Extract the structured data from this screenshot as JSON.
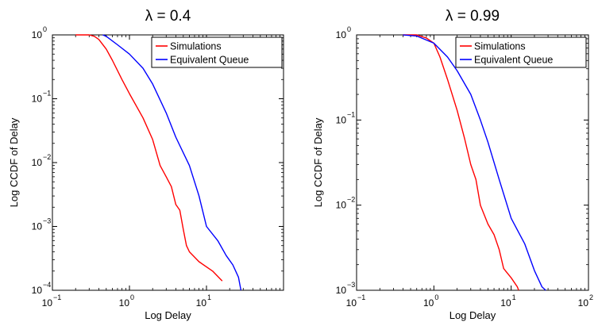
{
  "chart_data": [
    {
      "type": "line",
      "title": "λ = 0.4",
      "xlabel": "Log Delay",
      "ylabel": "Log CCDF of Delay",
      "xscale": "log",
      "yscale": "log",
      "xlim": [
        0.1,
        100
      ],
      "ylim": [
        0.0001,
        1
      ],
      "xticks": [
        {
          "value": 0.1,
          "base": "10",
          "exp": "−1"
        },
        {
          "value": 1,
          "base": "10",
          "exp": "0"
        },
        {
          "value": 10,
          "base": "10",
          "exp": "1"
        }
      ],
      "yticks": [
        {
          "value": 0.0001,
          "base": "10",
          "exp": "−4"
        },
        {
          "value": 0.001,
          "base": "10",
          "exp": "−3"
        },
        {
          "value": 0.01,
          "base": "10",
          "exp": "−2"
        },
        {
          "value": 0.1,
          "base": "10",
          "exp": "−1"
        },
        {
          "value": 1,
          "base": "10",
          "exp": "0"
        }
      ],
      "legend_position": "top-right",
      "grid": false,
      "series": [
        {
          "name": "Simulations",
          "color": "#ff0000",
          "points": [
            [
              0.2,
              1
            ],
            [
              0.3,
              1
            ],
            [
              0.35,
              0.95
            ],
            [
              0.4,
              0.85
            ],
            [
              0.5,
              0.6
            ],
            [
              0.6,
              0.4
            ],
            [
              0.8,
              0.2
            ],
            [
              1.0,
              0.12
            ],
            [
              1.5,
              0.05
            ],
            [
              2.0,
              0.023
            ],
            [
              2.5,
              0.009
            ],
            [
              3.0,
              0.006
            ],
            [
              3.5,
              0.0042
            ],
            [
              4.0,
              0.0022
            ],
            [
              4.5,
              0.0018
            ],
            [
              5.0,
              0.0009
            ],
            [
              5.5,
              0.0005
            ],
            [
              6.0,
              0.0004
            ],
            [
              8.0,
              0.00028
            ],
            [
              12.0,
              0.0002
            ],
            [
              16.0,
              0.00014
            ]
          ]
        },
        {
          "name": "Equivalent Queue",
          "color": "#0000ff",
          "points": [
            [
              0.45,
              1
            ],
            [
              0.5,
              0.95
            ],
            [
              0.7,
              0.7
            ],
            [
              1.0,
              0.5
            ],
            [
              1.5,
              0.3
            ],
            [
              2.0,
              0.17
            ],
            [
              3.0,
              0.06
            ],
            [
              4.0,
              0.025
            ],
            [
              6.0,
              0.009
            ],
            [
              8.0,
              0.003
            ],
            [
              10.0,
              0.001
            ],
            [
              14.0,
              0.0006
            ],
            [
              18.0,
              0.00035
            ],
            [
              22.0,
              0.00025
            ],
            [
              26.0,
              0.00016
            ],
            [
              28.0,
              0.0001
            ]
          ]
        }
      ]
    },
    {
      "type": "line",
      "title": "λ = 0.99",
      "xlabel": "Log Delay",
      "ylabel": "Log CCDF of Delay",
      "xscale": "log",
      "yscale": "log",
      "xlim": [
        0.1,
        100
      ],
      "ylim": [
        0.001,
        1
      ],
      "xticks": [
        {
          "value": 0.1,
          "base": "10",
          "exp": "−1"
        },
        {
          "value": 1,
          "base": "10",
          "exp": "0"
        },
        {
          "value": 10,
          "base": "10",
          "exp": "1"
        },
        {
          "value": 100,
          "base": "10",
          "exp": "2"
        }
      ],
      "yticks": [
        {
          "value": 0.001,
          "base": "10",
          "exp": "−3"
        },
        {
          "value": 0.01,
          "base": "10",
          "exp": "−2"
        },
        {
          "value": 0.1,
          "base": "10",
          "exp": "−1"
        },
        {
          "value": 1,
          "base": "10",
          "exp": "0"
        }
      ],
      "legend_position": "top-right",
      "grid": false,
      "series": [
        {
          "name": "Simulations",
          "color": "#ff0000",
          "points": [
            [
              0.4,
              1
            ],
            [
              0.6,
              1
            ],
            [
              0.8,
              0.92
            ],
            [
              1.0,
              0.8
            ],
            [
              1.2,
              0.55
            ],
            [
              1.5,
              0.3
            ],
            [
              2.0,
              0.13
            ],
            [
              2.5,
              0.06
            ],
            [
              3.0,
              0.03
            ],
            [
              3.5,
              0.02
            ],
            [
              4.0,
              0.01
            ],
            [
              5.0,
              0.006
            ],
            [
              6.0,
              0.0045
            ],
            [
              7.0,
              0.003
            ],
            [
              8.0,
              0.0018
            ],
            [
              10.0,
              0.0014
            ],
            [
              12.0,
              0.0011
            ],
            [
              12.5,
              0.001
            ]
          ]
        },
        {
          "name": "Equivalent Queue",
          "color": "#0000ff",
          "points": [
            [
              0.4,
              1
            ],
            [
              0.6,
              0.97
            ],
            [
              1.0,
              0.8
            ],
            [
              1.5,
              0.55
            ],
            [
              2.0,
              0.38
            ],
            [
              3.0,
              0.2
            ],
            [
              4.0,
              0.1
            ],
            [
              5.0,
              0.055
            ],
            [
              7.0,
              0.02
            ],
            [
              10.0,
              0.007
            ],
            [
              15.0,
              0.0035
            ],
            [
              20.0,
              0.0017
            ],
            [
              25.0,
              0.0011
            ],
            [
              28.0,
              0.001
            ]
          ]
        }
      ]
    }
  ]
}
